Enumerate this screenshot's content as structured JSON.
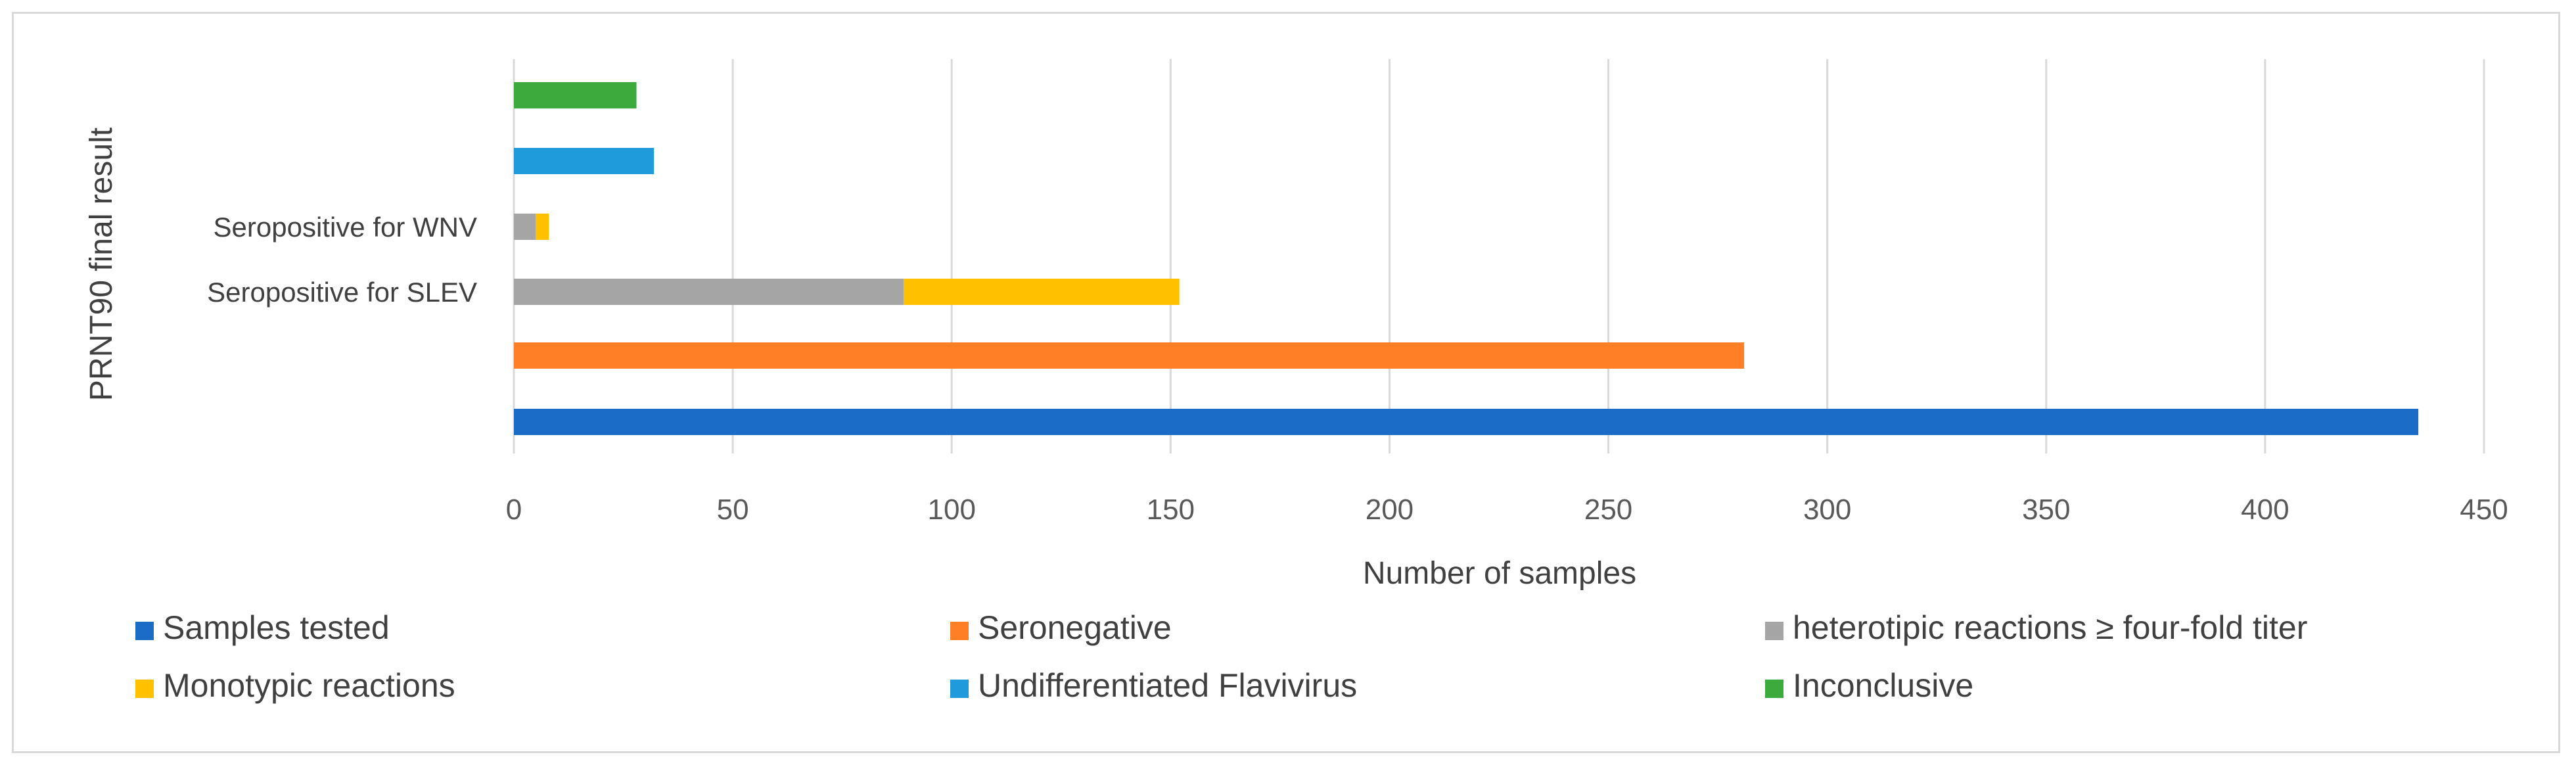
{
  "chart_data": {
    "type": "bar",
    "orientation": "horizontal",
    "stacked": true,
    "title": "",
    "xlabel": "Number of samples",
    "ylabel": "PRNT90 final result",
    "xlim": [
      0,
      450
    ],
    "xticks": [
      0,
      50,
      100,
      150,
      200,
      250,
      300,
      350,
      400,
      450
    ],
    "grid": true,
    "legend_position": "bottom",
    "categories": [
      "",
      "",
      "Seropositive for SLEV",
      "Seropositive for WNV",
      "",
      ""
    ],
    "series": [
      {
        "name": "Samples tested",
        "color": "#1a6cc6",
        "values": [
          435,
          0,
          0,
          0,
          0,
          0
        ]
      },
      {
        "name": "Seronegative",
        "color": "#ff7f27",
        "values": [
          0,
          281,
          0,
          0,
          0,
          0
        ]
      },
      {
        "name": "heterotipic reactions ≥ four-fold titer",
        "color": "#a5a5a5",
        "values": [
          0,
          0,
          89,
          5,
          0,
          0
        ]
      },
      {
        "name": "Monotypic reactions",
        "color": "#ffc000",
        "values": [
          0,
          0,
          63,
          3,
          0,
          0
        ]
      },
      {
        "name": "Undifferentiated Flavivirus",
        "color": "#1f9bdc",
        "values": [
          0,
          0,
          0,
          0,
          32,
          0
        ]
      },
      {
        "name": "Inconclusive",
        "color": "#3daa3d",
        "values": [
          0,
          0,
          0,
          0,
          0,
          28
        ]
      }
    ]
  }
}
